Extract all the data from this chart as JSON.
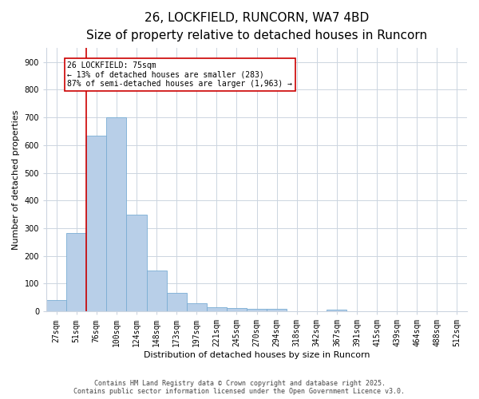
{
  "title_line1": "26, LOCKFIELD, RUNCORN, WA7 4BD",
  "title_line2": "Size of property relative to detached houses in Runcorn",
  "xlabel": "Distribution of detached houses by size in Runcorn",
  "ylabel": "Number of detached properties",
  "categories": [
    "27sqm",
    "51sqm",
    "76sqm",
    "100sqm",
    "124sqm",
    "148sqm",
    "173sqm",
    "197sqm",
    "221sqm",
    "245sqm",
    "270sqm",
    "294sqm",
    "318sqm",
    "342sqm",
    "367sqm",
    "391sqm",
    "415sqm",
    "439sqm",
    "464sqm",
    "488sqm",
    "512sqm"
  ],
  "values": [
    42,
    283,
    635,
    700,
    350,
    147,
    68,
    28,
    15,
    12,
    10,
    8,
    0,
    0,
    6,
    0,
    0,
    0,
    0,
    0,
    0
  ],
  "bar_color": "#b8cfe8",
  "bar_edge_color": "#7aadd4",
  "highlight_line_color": "#cc0000",
  "annotation_text_line1": "26 LOCKFIELD: 75sqm",
  "annotation_text_line2": "← 13% of detached houses are smaller (283)",
  "annotation_text_line3": "87% of semi-detached houses are larger (1,963) →",
  "annotation_box_color": "#cc0000",
  "annotation_text_color": "#000000",
  "ylim": [
    0,
    950
  ],
  "yticks": [
    0,
    100,
    200,
    300,
    400,
    500,
    600,
    700,
    800,
    900
  ],
  "background_color": "#ffffff",
  "grid_color": "#ccd5e0",
  "footer_line1": "Contains HM Land Registry data © Crown copyright and database right 2025.",
  "footer_line2": "Contains public sector information licensed under the Open Government Licence v3.0.",
  "title_fontsize": 11,
  "subtitle_fontsize": 9,
  "axis_label_fontsize": 8,
  "tick_fontsize": 7,
  "annotation_fontsize": 7,
  "footer_fontsize": 6
}
